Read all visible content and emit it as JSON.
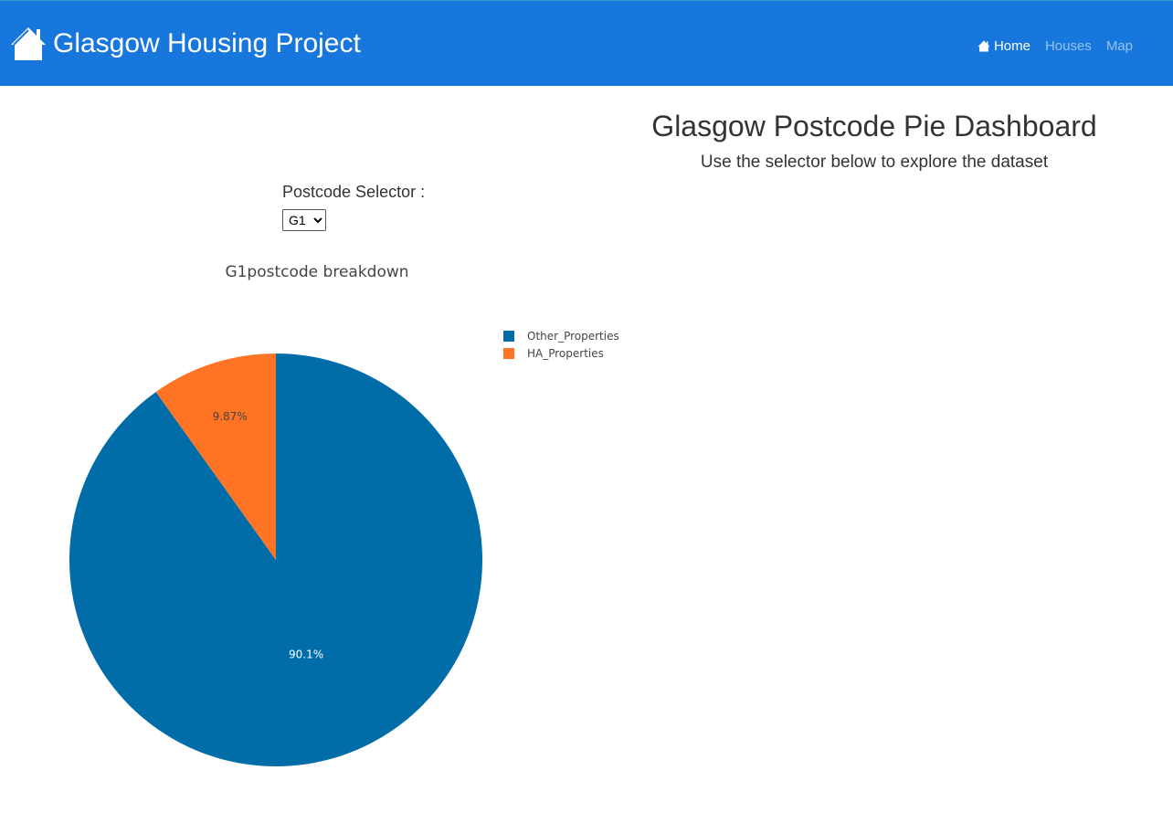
{
  "navbar": {
    "brand_icon": "house-icon",
    "brand_text": "Glasgow Housing Project",
    "links": [
      {
        "label": "Home",
        "icon": "house-icon",
        "active": true
      },
      {
        "label": "Houses",
        "active": false
      },
      {
        "label": "Map",
        "active": false
      }
    ]
  },
  "header": {
    "title": "Glasgow Postcode Pie Dashboard",
    "subtitle": "Use the selector below to explore the dataset"
  },
  "selector": {
    "label": "Postcode Selector :",
    "selected": "G1"
  },
  "chart_data": {
    "type": "pie",
    "title": "G1postcode breakdown",
    "labels": [
      "Other_Properties",
      "HA_Properties"
    ],
    "values": [
      90.13,
      9.87
    ],
    "text_labels": [
      "90.1%",
      "9.87%"
    ],
    "colors": [
      "#006ca8",
      "#ff7424"
    ],
    "label_colors": [
      "#ffffff",
      "#444444"
    ],
    "legend_position": "top-right",
    "direction": "clockwise",
    "start": "top"
  }
}
